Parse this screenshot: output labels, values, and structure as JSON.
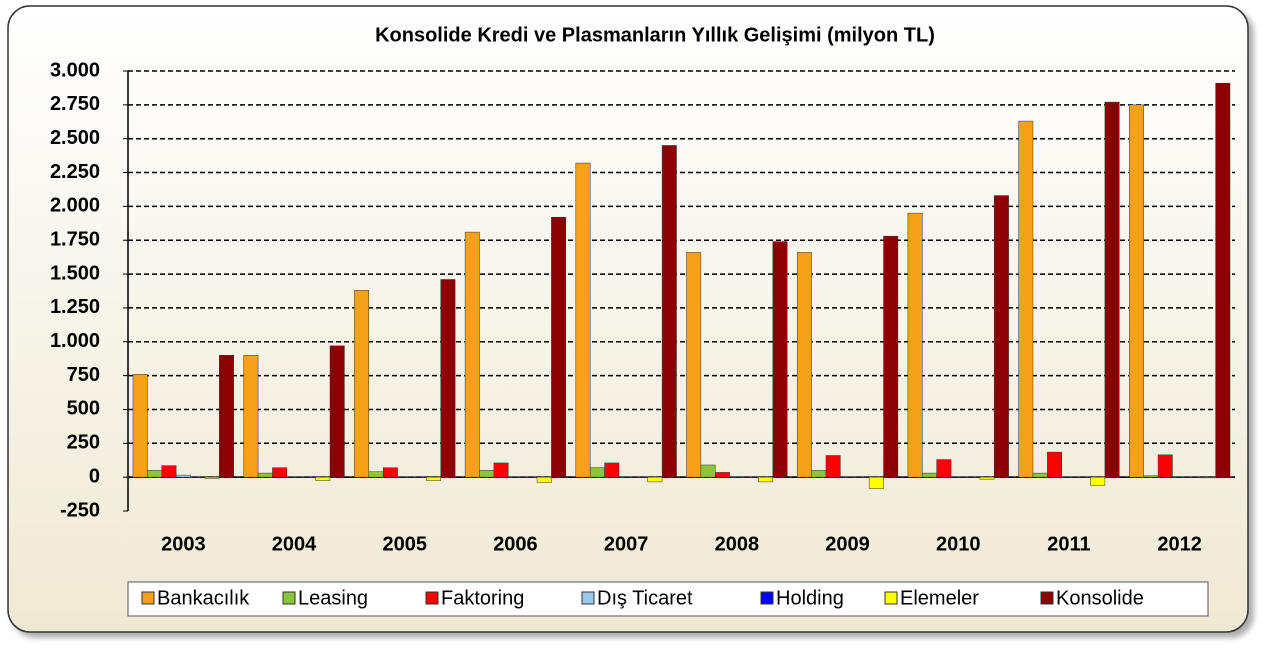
{
  "chart_data": {
    "type": "bar",
    "title": "Konsolide Kredi ve Plasmanların Yıllık Gelişimi (milyon TL)",
    "categories": [
      "2003",
      "2004",
      "2005",
      "2006",
      "2007",
      "2008",
      "2009",
      "2010",
      "2011",
      "2012"
    ],
    "series": [
      {
        "name": "Bankacılık",
        "color": "#f7a11a",
        "values": [
          760,
          900,
          1380,
          1810,
          2320,
          1660,
          1660,
          1950,
          2630,
          2750
        ]
      },
      {
        "name": "Leasing",
        "color": "#8cc43c",
        "values": [
          50,
          30,
          40,
          50,
          70,
          90,
          50,
          30,
          30,
          10
        ]
      },
      {
        "name": "Faktoring",
        "color": "#ff0000",
        "values": [
          85,
          70,
          70,
          105,
          105,
          35,
          160,
          130,
          185,
          165
        ]
      },
      {
        "name": "Dış Ticaret",
        "color": "#9cc8ee",
        "values": [
          15,
          5,
          5,
          5,
          5,
          5,
          5,
          5,
          5,
          5
        ]
      },
      {
        "name": "Holding",
        "color": "#0000ff",
        "values": [
          2,
          2,
          2,
          2,
          2,
          2,
          2,
          2,
          2,
          2
        ]
      },
      {
        "name": "Elemeler",
        "color": "#ffff00",
        "values": [
          -10,
          -25,
          -25,
          -40,
          -35,
          -35,
          -85,
          -15,
          -60,
          -5
        ]
      },
      {
        "name": "Konsolide",
        "color": "#8b0000",
        "values": [
          900,
          970,
          1460,
          1920,
          2450,
          1740,
          1780,
          2080,
          2770,
          2910
        ]
      }
    ],
    "ylim": [
      -250,
      3000
    ],
    "yticks": [
      -250,
      0,
      250,
      500,
      750,
      {
        "value": 1000,
        "label": "1.000"
      },
      {
        "value": 1250,
        "label": "1.250"
      },
      {
        "value": 1500,
        "label": "1.500"
      },
      {
        "value": 1750,
        "label": "1.750"
      },
      {
        "value": 2000,
        "label": "2.000"
      },
      {
        "value": 2250,
        "label": "2.250"
      },
      {
        "value": 2500,
        "label": "2.500"
      },
      {
        "value": 2750,
        "label": "2.750"
      },
      {
        "value": 3000,
        "label": "3.000"
      }
    ],
    "grid": true,
    "legend": "bottom"
  }
}
